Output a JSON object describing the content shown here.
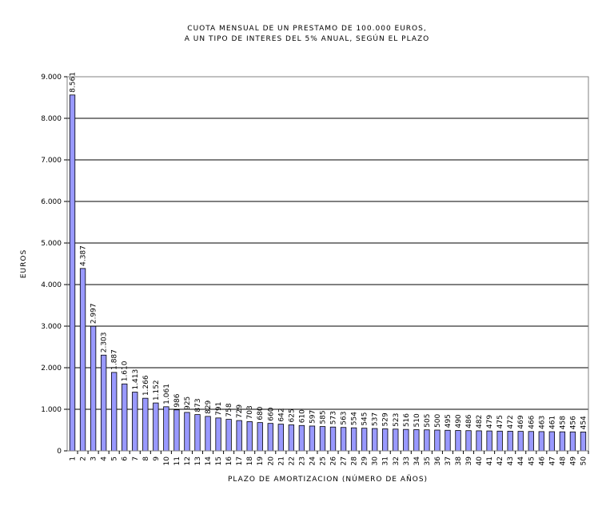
{
  "chart_data": {
    "type": "bar",
    "title_lines": [
      "CUOTA MENSUAL DE UN PRESTAMO DE 100.000 EUROS,",
      "A UN TIPO DE INTERES DEL 5% ANUAL, SEGÚN EL PLAZO"
    ],
    "xlabel": "PLAZO DE AMORTIZACION (NÚMERO DE AÑOS)",
    "ylabel": "EUROS",
    "ylim": [
      0,
      9000
    ],
    "yticks": [
      "0",
      "1.000",
      "2.000",
      "3.000",
      "4.000",
      "5.000",
      "6.000",
      "7.000",
      "8.000",
      "9.000"
    ],
    "grid": true,
    "bar_color": "#9999ff",
    "categories": [
      "1",
      "2",
      "3",
      "4",
      "5",
      "6",
      "7",
      "8",
      "9",
      "10",
      "11",
      "12",
      "13",
      "14",
      "15",
      "16",
      "17",
      "18",
      "19",
      "20",
      "21",
      "22",
      "23",
      "24",
      "25",
      "26",
      "27",
      "28",
      "29",
      "30",
      "31",
      "32",
      "33",
      "34",
      "35",
      "36",
      "37",
      "38",
      "39",
      "40",
      "41",
      "42",
      "43",
      "44",
      "45",
      "46",
      "47",
      "48",
      "49",
      "50"
    ],
    "values": [
      8561,
      4387,
      2997,
      2303,
      1887,
      1610,
      1413,
      1266,
      1152,
      1061,
      986,
      925,
      873,
      829,
      791,
      758,
      729,
      703,
      680,
      660,
      642,
      625,
      610,
      597,
      585,
      573,
      563,
      554,
      545,
      537,
      529,
      523,
      516,
      510,
      505,
      500,
      495,
      490,
      486,
      482,
      479,
      475,
      472,
      469,
      466,
      463,
      461,
      458,
      456,
      454
    ],
    "labels": [
      "8.561",
      "4.387",
      "2.997",
      "2.303",
      "1.887",
      "1.610",
      "1.413",
      "1.266",
      "1.152",
      "1.061",
      "986",
      "925",
      "873",
      "829",
      "791",
      "758",
      "729",
      "703",
      "680",
      "660",
      "642",
      "625",
      "610",
      "597",
      "585",
      "573",
      "563",
      "554",
      "545",
      "537",
      "529",
      "523",
      "516",
      "510",
      "505",
      "500",
      "495",
      "490",
      "486",
      "482",
      "479",
      "475",
      "472",
      "469",
      "466",
      "463",
      "461",
      "458",
      "456",
      "454"
    ]
  }
}
